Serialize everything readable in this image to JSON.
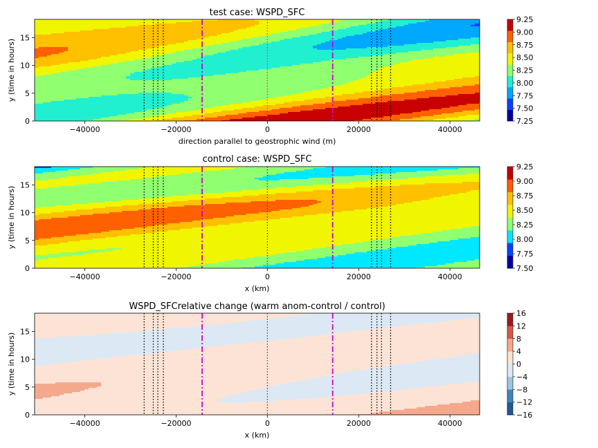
{
  "chart_data": [
    {
      "type": "heatmap",
      "title": "test case: WSPD_SFC",
      "xlabel": "direction parallel to geostrophic wind (m)",
      "ylabel": "y (time in hours)",
      "xlim": [
        -51000,
        46500
      ],
      "ylim": [
        0,
        18.3
      ],
      "xticks": [
        -40000,
        -20000,
        0,
        20000,
        40000
      ],
      "yticks": [
        0,
        5,
        10,
        15
      ],
      "colorbar": {
        "levels": [
          "7.25",
          "7.50",
          "7.75",
          "8.00",
          "8.25",
          "8.50",
          "8.75",
          "9.00",
          "9.25"
        ],
        "colors": [
          "#0000a8",
          "#0044ff",
          "#00a8ff",
          "#20f0d0",
          "#90ff70",
          "#f0f500",
          "#ffc000",
          "#ff6000",
          "#c80000"
        ]
      },
      "field": {
        "base": 8.55,
        "band_slope_hours_per_km": 0.11,
        "band_amplitude": 0.55
      },
      "vlines": [
        {
          "x": -27000,
          "style": "dotted",
          "color": "#000000"
        },
        {
          "x": -25000,
          "style": "dotted",
          "color": "#000000"
        },
        {
          "x": -24000,
          "style": "dotted",
          "color": "#000000"
        },
        {
          "x": -22800,
          "style": "dotted",
          "color": "#000000"
        },
        {
          "x": -14300,
          "style": "dashdot",
          "color": "#cc00cc"
        },
        {
          "x": 0,
          "style": "dotted",
          "color": "#ff3030"
        },
        {
          "x": 14300,
          "style": "dashdot",
          "color": "#cc00cc"
        },
        {
          "x": 22800,
          "style": "dotted",
          "color": "#000000"
        },
        {
          "x": 24000,
          "style": "dotted",
          "color": "#000000"
        },
        {
          "x": 25000,
          "style": "dotted",
          "color": "#000000"
        },
        {
          "x": 27000,
          "style": "dotted",
          "color": "#000000"
        }
      ]
    },
    {
      "type": "heatmap",
      "title": "control case: WSPD_SFC",
      "xlabel": "x (km)",
      "ylabel": "y (time in hours)",
      "xlim": [
        -51000,
        46500
      ],
      "ylim": [
        0,
        18.3
      ],
      "xticks": [
        -40000,
        -20000,
        0,
        20000,
        40000
      ],
      "yticks": [
        0,
        5,
        10,
        15
      ],
      "colorbar": {
        "levels": [
          "7.50",
          "7.75",
          "8.00",
          "8.25",
          "8.50",
          "8.75",
          "9.00",
          "9.25"
        ],
        "colors": [
          "#0000a8",
          "#0044ff",
          "#00e8ff",
          "#90ff70",
          "#f0f500",
          "#ffc000",
          "#ff6000",
          "#c80000"
        ]
      },
      "field": {
        "base": 8.45,
        "band_slope_hours_per_km": 0.1,
        "band_amplitude": 0.6
      },
      "vlines": [
        {
          "x": -27000,
          "style": "dotted",
          "color": "#000000"
        },
        {
          "x": -25000,
          "style": "dotted",
          "color": "#000000"
        },
        {
          "x": -24000,
          "style": "dotted",
          "color": "#000000"
        },
        {
          "x": -22800,
          "style": "dotted",
          "color": "#000000"
        },
        {
          "x": -14300,
          "style": "dashdot",
          "color": "#cc00cc"
        },
        {
          "x": 0,
          "style": "dotted",
          "color": "#6a3a3a"
        },
        {
          "x": 14300,
          "style": "dashdot",
          "color": "#cc00cc"
        },
        {
          "x": 22800,
          "style": "dotted",
          "color": "#000000"
        },
        {
          "x": 24000,
          "style": "dotted",
          "color": "#000000"
        },
        {
          "x": 25000,
          "style": "dotted",
          "color": "#000000"
        },
        {
          "x": 27000,
          "style": "dotted",
          "color": "#000000"
        }
      ]
    },
    {
      "type": "heatmap",
      "title": "WSPD_SFCrelative change (warm anom-control / control)",
      "xlabel": "x (km)",
      "ylabel": "y (time in hours)",
      "xlim": [
        -51000,
        46500
      ],
      "ylim": [
        0,
        18.3
      ],
      "xticks": [
        -40000,
        -20000,
        0,
        20000,
        40000
      ],
      "yticks": [
        0,
        5,
        10,
        15
      ],
      "colorbar": {
        "levels": [
          "−16",
          "−12",
          "−8",
          "−4",
          "0",
          "4",
          "8",
          "12",
          "16"
        ],
        "colors": [
          "#1f5a96",
          "#3f86bf",
          "#9cc7e2",
          "#dce9f4",
          "#fde3d5",
          "#f5a98c",
          "#d55a4b",
          "#9a1a23"
        ]
      },
      "field": {
        "base": 1.0,
        "band_slope_hours_per_km": 0.11,
        "band_amplitude": 5.5
      },
      "vlines": [
        {
          "x": -27000,
          "style": "dotted",
          "color": "#000000"
        },
        {
          "x": -25000,
          "style": "dotted",
          "color": "#000000"
        },
        {
          "x": -24000,
          "style": "dotted",
          "color": "#000000"
        },
        {
          "x": -22800,
          "style": "dotted",
          "color": "#000000"
        },
        {
          "x": -14300,
          "style": "dashdot",
          "color": "#cc00cc"
        },
        {
          "x": 0,
          "style": "dotted",
          "color": "#6a3a3a"
        },
        {
          "x": 14300,
          "style": "dashdot",
          "color": "#cc00cc"
        },
        {
          "x": 22800,
          "style": "dotted",
          "color": "#000000"
        },
        {
          "x": 24000,
          "style": "dotted",
          "color": "#000000"
        },
        {
          "x": 25000,
          "style": "dotted",
          "color": "#000000"
        },
        {
          "x": 27000,
          "style": "dotted",
          "color": "#000000"
        }
      ]
    }
  ]
}
